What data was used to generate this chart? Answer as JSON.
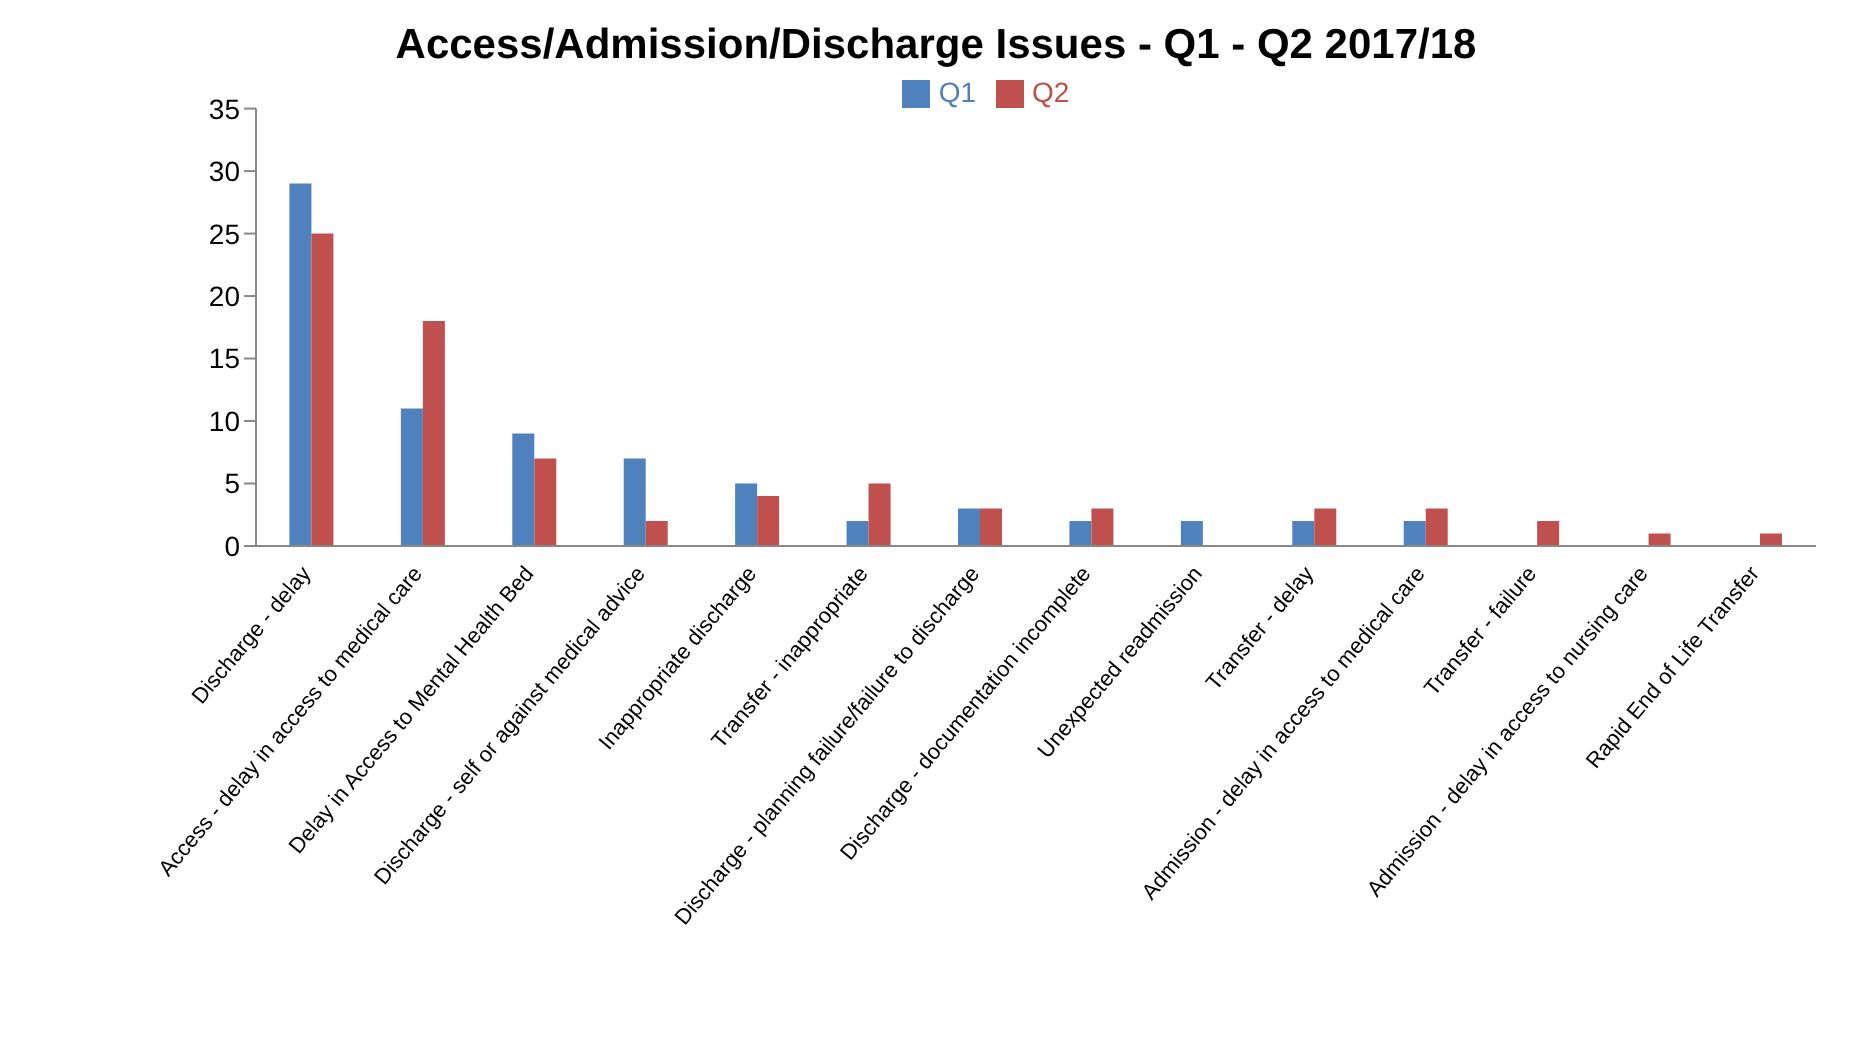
{
  "chart_data": {
    "type": "bar",
    "title": "Access/Admission/Discharge Issues  - Q1 - Q2 2017/18",
    "categories": [
      "Discharge - delay",
      "Access - delay in access to medical care",
      "Delay in Access to Mental Health Bed",
      "Discharge - self or against medical advice",
      "Inappropriate discharge",
      "Transfer - inappropriate",
      "Discharge - planning failure/failure to discharge",
      "Discharge - documentation incomplete",
      "Unexpected readmission",
      "Transfer - delay",
      "Admission - delay in access to medical care",
      "Transfer - failure",
      "Admission - delay in access to nursing care",
      "Rapid End of Life Transfer"
    ],
    "series": [
      {
        "name": "Q1",
        "color": "#4f81bd",
        "values": [
          29,
          11,
          9,
          7,
          5,
          2,
          3,
          2,
          2,
          2,
          2,
          0,
          0,
          0
        ]
      },
      {
        "name": "Q2",
        "color": "#c0504d",
        "values": [
          25,
          18,
          7,
          2,
          4,
          5,
          3,
          3,
          0,
          3,
          3,
          2,
          1,
          1
        ]
      }
    ],
    "ylim": [
      0,
      35
    ],
    "yticks": [
      0,
      5,
      10,
      15,
      20,
      25,
      30,
      35
    ],
    "grid": false,
    "legend": "top"
  }
}
